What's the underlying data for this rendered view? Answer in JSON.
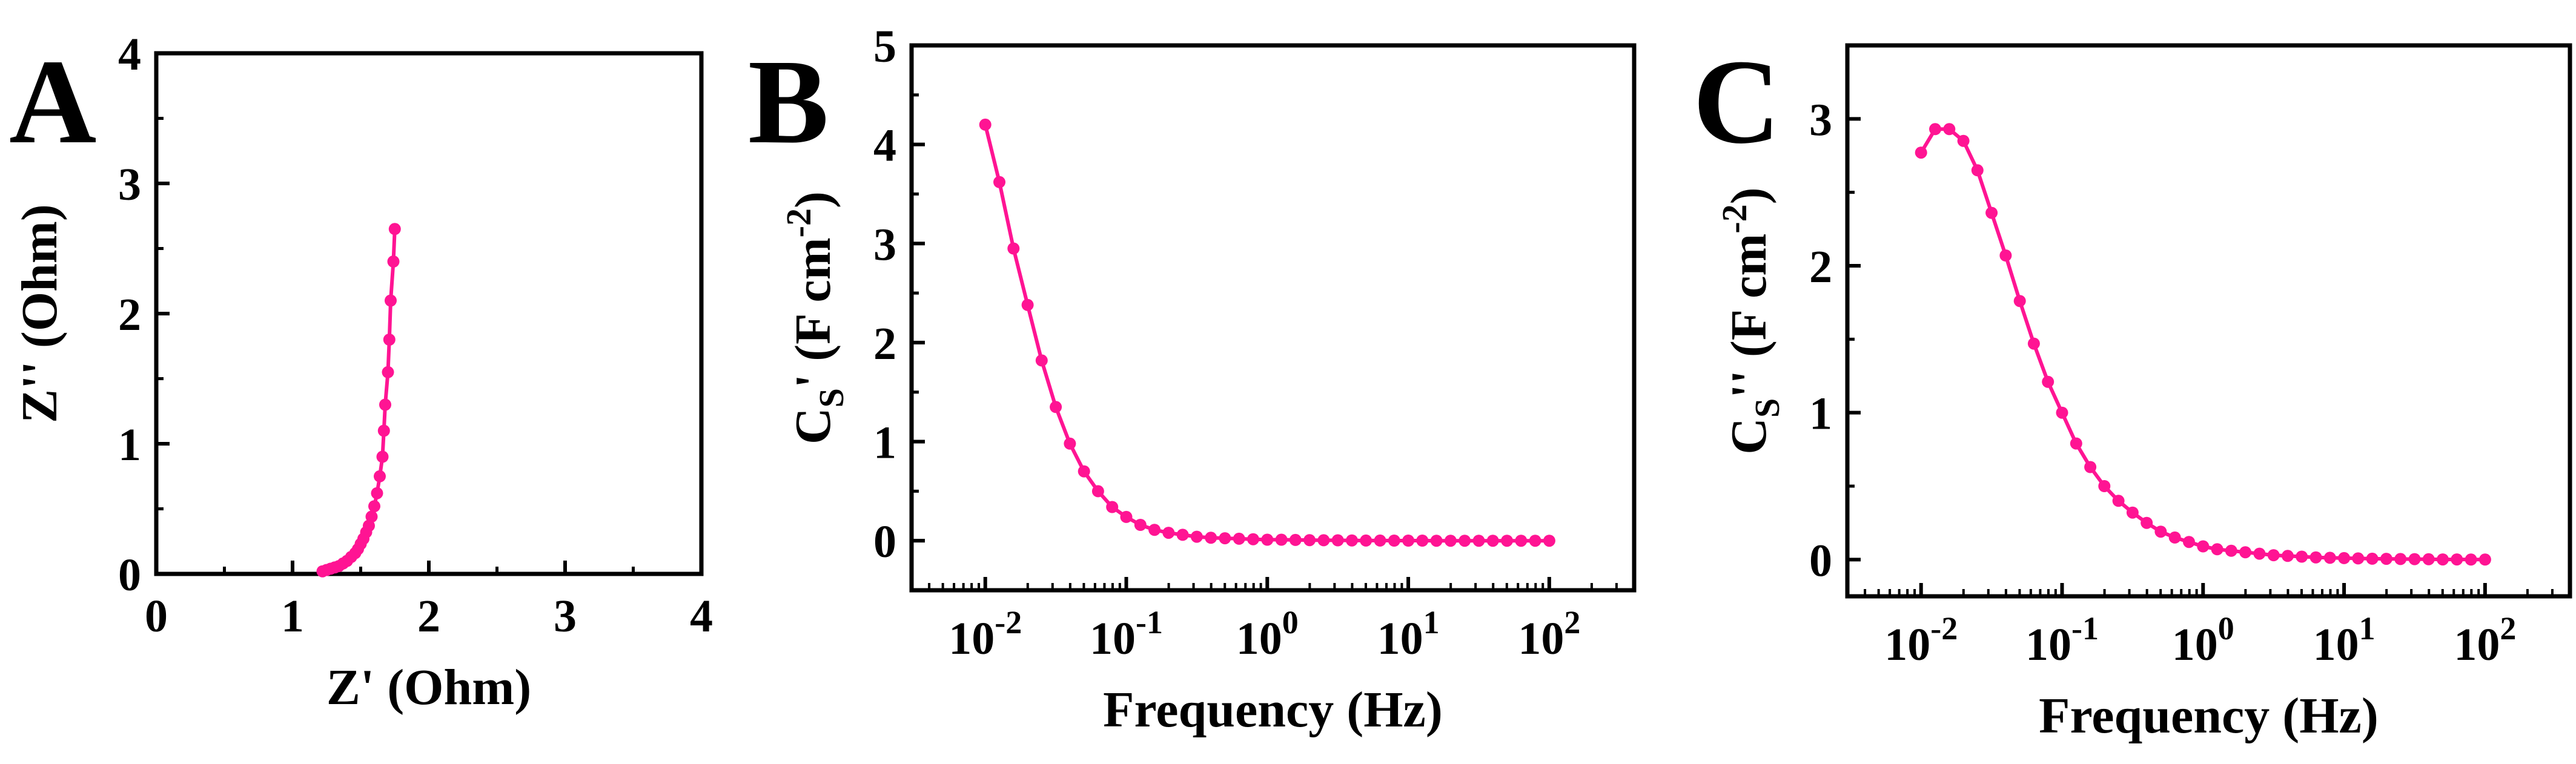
{
  "chart_data": [
    {
      "panel": "A",
      "type": "scatter",
      "xlabel": "Z' (Ohm)",
      "ylabel": "Z'' (Ohm)",
      "xlim": [
        0,
        4
      ],
      "ylim": [
        0,
        4
      ],
      "xticks": [
        "0",
        "1",
        "2",
        "3",
        "4"
      ],
      "yticks": [
        "0",
        "1",
        "2",
        "3",
        "4"
      ],
      "color": "#ff1493",
      "x": [
        1.22,
        1.25,
        1.28,
        1.31,
        1.34,
        1.37,
        1.4,
        1.43,
        1.46,
        1.48,
        1.5,
        1.52,
        1.54,
        1.56,
        1.58,
        1.6,
        1.62,
        1.64,
        1.66,
        1.67,
        1.68,
        1.7,
        1.71,
        1.72,
        1.74,
        1.75
      ],
      "y": [
        0.02,
        0.03,
        0.04,
        0.05,
        0.06,
        0.08,
        0.1,
        0.13,
        0.16,
        0.19,
        0.23,
        0.27,
        0.32,
        0.37,
        0.44,
        0.52,
        0.62,
        0.75,
        0.9,
        1.1,
        1.3,
        1.55,
        1.8,
        2.1,
        2.4,
        2.65
      ]
    },
    {
      "panel": "B",
      "type": "line",
      "xscale": "log",
      "xlabel": "Frequency (Hz)",
      "ylabel_main": "C",
      "ylabel_sub": "S",
      "ylabel_rest": "' (F cm",
      "ylabel_sup": "-2",
      "ylabel_end": ")",
      "xlim": [
        0.003,
        400
      ],
      "ylim": [
        -0.5,
        5
      ],
      "xticks": [
        {
          "base": "10",
          "exp": "-2"
        },
        {
          "base": "10",
          "exp": "-1"
        },
        {
          "base": "10",
          "exp": "0"
        },
        {
          "base": "10",
          "exp": "1"
        },
        {
          "base": "10",
          "exp": "2"
        }
      ],
      "yticks": [
        "0",
        "1",
        "2",
        "3",
        "4",
        "5"
      ],
      "color": "#ff1493",
      "log10_x": [
        -2.0,
        -1.9,
        -1.8,
        -1.7,
        -1.6,
        -1.5,
        -1.4,
        -1.3,
        -1.2,
        -1.1,
        -1.0,
        -0.9,
        -0.8,
        -0.7,
        -0.6,
        -0.5,
        -0.4,
        -0.3,
        -0.2,
        -0.1,
        0.0,
        0.1,
        0.2,
        0.3,
        0.4,
        0.5,
        0.6,
        0.7,
        0.8,
        0.9,
        1.0,
        1.1,
        1.2,
        1.3,
        1.4,
        1.5,
        1.6,
        1.7,
        1.8,
        1.9,
        2.0
      ],
      "y": [
        4.2,
        3.62,
        2.95,
        2.38,
        1.82,
        1.35,
        0.98,
        0.7,
        0.5,
        0.34,
        0.24,
        0.16,
        0.11,
        0.08,
        0.06,
        0.04,
        0.03,
        0.025,
        0.02,
        0.015,
        0.01,
        0.01,
        0.008,
        0.006,
        0.005,
        0.004,
        0.003,
        0.002,
        0.002,
        0.001,
        0.001,
        0.001,
        0,
        0,
        0,
        0,
        0,
        0,
        0,
        0,
        0
      ]
    },
    {
      "panel": "C",
      "type": "line",
      "xscale": "log",
      "xlabel": "Frequency (Hz)",
      "ylabel_main": "C",
      "ylabel_sub": "S",
      "ylabel_rest": "'' (F cm",
      "ylabel_sup": "-2",
      "ylabel_end": ")",
      "xlim": [
        0.003,
        400
      ],
      "ylim": [
        -0.25,
        3.5
      ],
      "xticks": [
        {
          "base": "10",
          "exp": "-2"
        },
        {
          "base": "10",
          "exp": "-1"
        },
        {
          "base": "10",
          "exp": "0"
        },
        {
          "base": "10",
          "exp": "1"
        },
        {
          "base": "10",
          "exp": "2"
        }
      ],
      "yticks": [
        "0",
        "1",
        "2",
        "3"
      ],
      "color": "#ff1493",
      "log10_x": [
        -2.0,
        -1.9,
        -1.8,
        -1.7,
        -1.6,
        -1.5,
        -1.4,
        -1.3,
        -1.2,
        -1.1,
        -1.0,
        -0.9,
        -0.8,
        -0.7,
        -0.6,
        -0.5,
        -0.4,
        -0.3,
        -0.2,
        -0.1,
        0.0,
        0.1,
        0.2,
        0.3,
        0.4,
        0.5,
        0.6,
        0.7,
        0.8,
        0.9,
        1.0,
        1.1,
        1.2,
        1.3,
        1.4,
        1.5,
        1.6,
        1.7,
        1.8,
        1.9,
        2.0
      ],
      "y": [
        2.77,
        2.93,
        2.93,
        2.85,
        2.65,
        2.36,
        2.07,
        1.76,
        1.47,
        1.21,
        1.0,
        0.79,
        0.63,
        0.5,
        0.4,
        0.32,
        0.25,
        0.19,
        0.15,
        0.12,
        0.09,
        0.07,
        0.06,
        0.05,
        0.04,
        0.03,
        0.025,
        0.02,
        0.015,
        0.012,
        0.01,
        0.008,
        0.006,
        0.005,
        0.004,
        0.003,
        0.002,
        0.001,
        0.001,
        0,
        0
      ]
    }
  ]
}
